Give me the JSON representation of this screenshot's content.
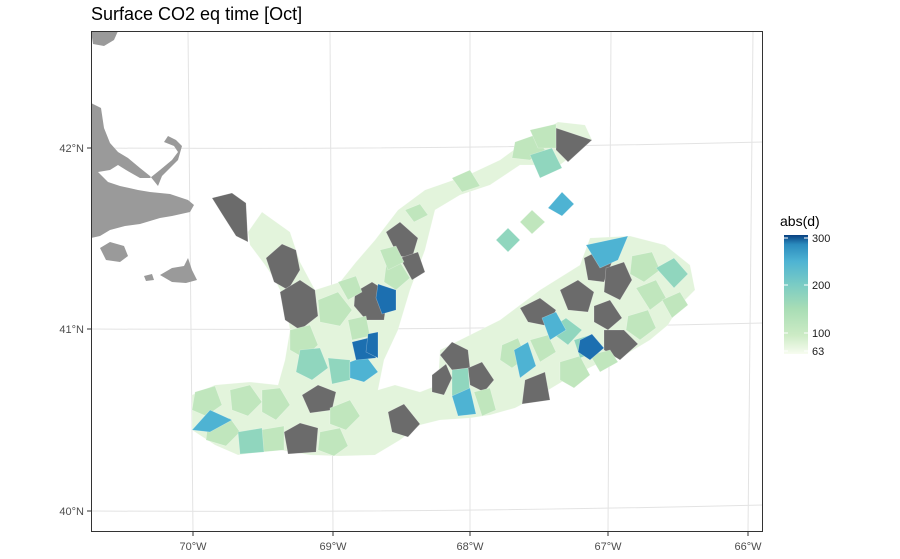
{
  "title": "Surface CO2 eq time [Oct]",
  "x_axis": {
    "ticks": [
      "70°W",
      "69°W",
      "68°W",
      "67°W",
      "66°W"
    ]
  },
  "y_axis": {
    "ticks": [
      "42°N",
      "41°N",
      "40°N"
    ]
  },
  "legend": {
    "title": "abs(d)",
    "min": 63,
    "max": 300,
    "labels": [
      {
        "value": 300,
        "text": "300"
      },
      {
        "value": 200,
        "text": "200"
      },
      {
        "value": 100,
        "text": "100"
      },
      {
        "value": 63,
        "text": "63"
      }
    ],
    "colors": [
      "#f7fcf0",
      "#e0f3db",
      "#ccebc5",
      "#a8ddb5",
      "#7bccc4",
      "#4eb3d3",
      "#2b8cbe",
      "#0868ac",
      "#084081"
    ]
  },
  "colors": {
    "land": "#9a9a9a",
    "na_cell": "#6b6b6b",
    "panel_border": "#333333",
    "grid": "#e3e3e3"
  }
}
